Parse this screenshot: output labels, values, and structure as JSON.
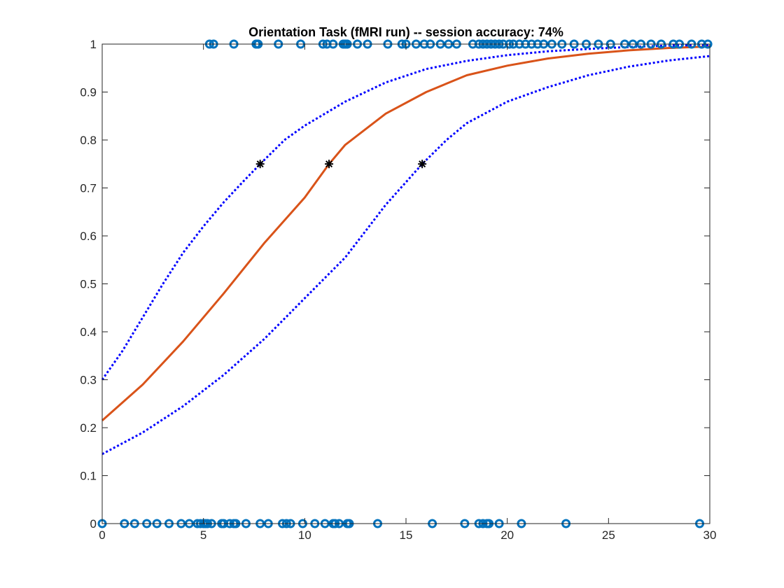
{
  "chart_data": {
    "type": "scatter",
    "title": "Orientation Task (fMRI run) -- session accuracy: 74%",
    "xlabel": "",
    "ylabel": "",
    "xlim": [
      0,
      30
    ],
    "ylim": [
      0,
      1
    ],
    "xticks": [
      0,
      5,
      10,
      15,
      20,
      25,
      30
    ],
    "yticks": [
      0,
      0.1,
      0.2,
      0.3,
      0.4,
      0.5,
      0.6,
      0.7,
      0.8,
      0.9,
      1
    ],
    "grid": false,
    "legend": "none",
    "series": [
      {
        "kind": "scatter",
        "marker": "circle",
        "color": "#0072BD",
        "points": [
          [
            0.0,
            0
          ],
          [
            1.1,
            0
          ],
          [
            1.6,
            0
          ],
          [
            2.2,
            0
          ],
          [
            2.7,
            0
          ],
          [
            3.3,
            0
          ],
          [
            3.9,
            0
          ],
          [
            4.3,
            0
          ],
          [
            4.7,
            0
          ],
          [
            4.85,
            0
          ],
          [
            5.0,
            0
          ],
          [
            5.1,
            0
          ],
          [
            5.2,
            0
          ],
          [
            5.4,
            0
          ],
          [
            5.9,
            0
          ],
          [
            6.0,
            0
          ],
          [
            6.3,
            0
          ],
          [
            6.5,
            0
          ],
          [
            6.6,
            0
          ],
          [
            7.1,
            0
          ],
          [
            7.8,
            0
          ],
          [
            8.2,
            0
          ],
          [
            8.9,
            0
          ],
          [
            9.1,
            0
          ],
          [
            9.3,
            0
          ],
          [
            9.9,
            0
          ],
          [
            10.5,
            0
          ],
          [
            11.0,
            0
          ],
          [
            11.4,
            0
          ],
          [
            11.5,
            0
          ],
          [
            11.7,
            0
          ],
          [
            12.1,
            0
          ],
          [
            12.2,
            0
          ],
          [
            13.6,
            0
          ],
          [
            16.3,
            0
          ],
          [
            17.9,
            0
          ],
          [
            18.6,
            0
          ],
          [
            18.8,
            0
          ],
          [
            19.0,
            0
          ],
          [
            19.1,
            0
          ],
          [
            19.6,
            0
          ],
          [
            20.7,
            0
          ],
          [
            22.9,
            0
          ],
          [
            29.5,
            0
          ],
          [
            5.3,
            1
          ],
          [
            5.5,
            1
          ],
          [
            6.5,
            1
          ],
          [
            7.6,
            1
          ],
          [
            7.7,
            1
          ],
          [
            8.7,
            1
          ],
          [
            9.8,
            1
          ],
          [
            10.9,
            1
          ],
          [
            11.1,
            1
          ],
          [
            11.4,
            1
          ],
          [
            11.9,
            1
          ],
          [
            12.0,
            1
          ],
          [
            12.1,
            1
          ],
          [
            12.6,
            1
          ],
          [
            13.1,
            1
          ],
          [
            14.1,
            1
          ],
          [
            14.8,
            1
          ],
          [
            15.0,
            1
          ],
          [
            15.5,
            1
          ],
          [
            15.9,
            1
          ],
          [
            16.2,
            1
          ],
          [
            16.7,
            1
          ],
          [
            17.1,
            1
          ],
          [
            17.5,
            1
          ],
          [
            18.3,
            1
          ],
          [
            18.6,
            1
          ],
          [
            18.8,
            1
          ],
          [
            19.0,
            1
          ],
          [
            19.2,
            1
          ],
          [
            19.4,
            1
          ],
          [
            19.6,
            1
          ],
          [
            19.8,
            1
          ],
          [
            20.1,
            1
          ],
          [
            20.3,
            1
          ],
          [
            20.6,
            1
          ],
          [
            20.9,
            1
          ],
          [
            21.2,
            1
          ],
          [
            21.5,
            1
          ],
          [
            21.8,
            1
          ],
          [
            22.2,
            1
          ],
          [
            22.7,
            1
          ],
          [
            23.3,
            1
          ],
          [
            23.9,
            1
          ],
          [
            24.5,
            1
          ],
          [
            25.1,
            1
          ],
          [
            25.8,
            1
          ],
          [
            26.2,
            1
          ],
          [
            26.6,
            1
          ],
          [
            27.1,
            1
          ],
          [
            27.6,
            1
          ],
          [
            28.2,
            1
          ],
          [
            28.5,
            1
          ],
          [
            29.1,
            1
          ],
          [
            29.6,
            1
          ],
          [
            29.9,
            1
          ]
        ]
      },
      {
        "kind": "line",
        "style": "solid",
        "color": "#D95319",
        "points": [
          [
            0,
            0.215
          ],
          [
            2,
            0.29
          ],
          [
            4,
            0.38
          ],
          [
            6,
            0.48
          ],
          [
            8,
            0.585
          ],
          [
            10,
            0.68
          ],
          [
            11.2,
            0.75
          ],
          [
            12,
            0.79
          ],
          [
            14,
            0.855
          ],
          [
            16,
            0.9
          ],
          [
            18,
            0.935
          ],
          [
            20,
            0.955
          ],
          [
            22,
            0.97
          ],
          [
            24,
            0.98
          ],
          [
            26,
            0.987
          ],
          [
            28,
            0.992
          ],
          [
            30,
            0.995
          ]
        ]
      },
      {
        "kind": "line",
        "style": "dotted",
        "color": "#0000FF",
        "points": [
          [
            0,
            0.3
          ],
          [
            1,
            0.36
          ],
          [
            2,
            0.43
          ],
          [
            3,
            0.5
          ],
          [
            4,
            0.565
          ],
          [
            5,
            0.62
          ],
          [
            6,
            0.67
          ],
          [
            7,
            0.715
          ],
          [
            7.8,
            0.75
          ],
          [
            9,
            0.8
          ],
          [
            10,
            0.83
          ],
          [
            12,
            0.88
          ],
          [
            14,
            0.92
          ],
          [
            16,
            0.948
          ],
          [
            18,
            0.965
          ],
          [
            20,
            0.977
          ],
          [
            22,
            0.985
          ],
          [
            24,
            0.99
          ],
          [
            26,
            0.994
          ],
          [
            28,
            0.997
          ],
          [
            30,
            0.998
          ]
        ]
      },
      {
        "kind": "line",
        "style": "dotted",
        "color": "#0000FF",
        "points": [
          [
            0,
            0.145
          ],
          [
            2,
            0.19
          ],
          [
            4,
            0.245
          ],
          [
            6,
            0.31
          ],
          [
            8,
            0.385
          ],
          [
            10,
            0.47
          ],
          [
            12,
            0.555
          ],
          [
            14,
            0.665
          ],
          [
            15.8,
            0.75
          ],
          [
            17,
            0.8
          ],
          [
            18,
            0.835
          ],
          [
            20,
            0.88
          ],
          [
            22,
            0.91
          ],
          [
            24,
            0.935
          ],
          [
            26,
            0.953
          ],
          [
            28,
            0.966
          ],
          [
            30,
            0.975
          ]
        ]
      },
      {
        "kind": "scatter",
        "marker": "asterisk",
        "color": "#000000",
        "points": [
          [
            7.8,
            0.75
          ],
          [
            11.2,
            0.75
          ],
          [
            15.8,
            0.75
          ]
        ]
      }
    ]
  }
}
